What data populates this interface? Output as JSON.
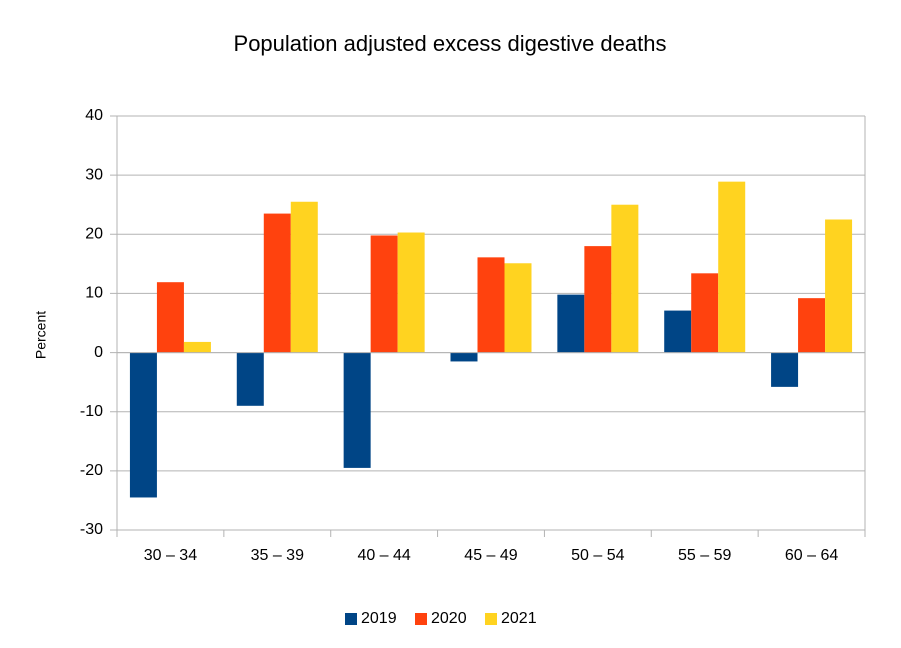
{
  "chart_data": {
    "type": "bar",
    "title": "Population adjusted excess digestive deaths",
    "y_label": "Percent",
    "categories": [
      "30 – 34",
      "35 – 39",
      "40 – 44",
      "45 – 49",
      "50 – 54",
      "55 – 59",
      "60 – 64"
    ],
    "series": [
      {
        "name": "2019",
        "color": "#004586",
        "values": [
          -24.5,
          -9,
          -19.5,
          -1.5,
          9.8,
          7.1,
          -5.8
        ]
      },
      {
        "name": "2020",
        "color": "#ff420e",
        "values": [
          11.9,
          23.5,
          19.8,
          16.1,
          18,
          13.4,
          9.2
        ]
      },
      {
        "name": "2021",
        "color": "#ffd320",
        "values": [
          1.8,
          25.5,
          20.3,
          15.1,
          25,
          28.9,
          22.5
        ]
      }
    ],
    "ylim": [
      -30,
      40
    ],
    "yticks": [
      -30,
      -20,
      -10,
      0,
      10,
      20,
      30,
      40
    ],
    "grid": true,
    "legend": "bottom"
  }
}
